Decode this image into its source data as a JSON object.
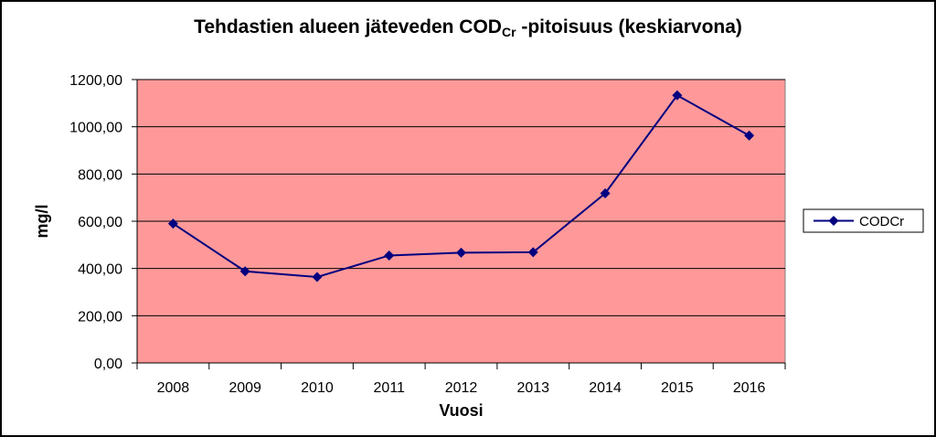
{
  "chart_data": {
    "type": "line",
    "title_main": "Tehdastien alueen jäteveden COD",
    "title_sub": "Cr",
    "title_tail": " -pitoisuus (keskiarvona)",
    "xlabel": "Vuosi",
    "ylabel": "mg/l",
    "categories": [
      "2008",
      "2009",
      "2010",
      "2011",
      "2012",
      "2013",
      "2014",
      "2015",
      "2016"
    ],
    "series": [
      {
        "name": "CODCr",
        "values": [
          590,
          388,
          364,
          455,
          467,
          469,
          718,
          1133,
          963
        ]
      }
    ],
    "ylim": [
      0,
      1200
    ],
    "yticks": [
      0,
      200,
      400,
      600,
      800,
      1000,
      1200
    ],
    "ytick_labels": [
      "0,00",
      "200,00",
      "400,00",
      "600,00",
      "800,00",
      "1000,00",
      "1200,00"
    ],
    "grid": true,
    "legend": "right",
    "plot_background": "#ff9999",
    "series_color": "#000080"
  }
}
